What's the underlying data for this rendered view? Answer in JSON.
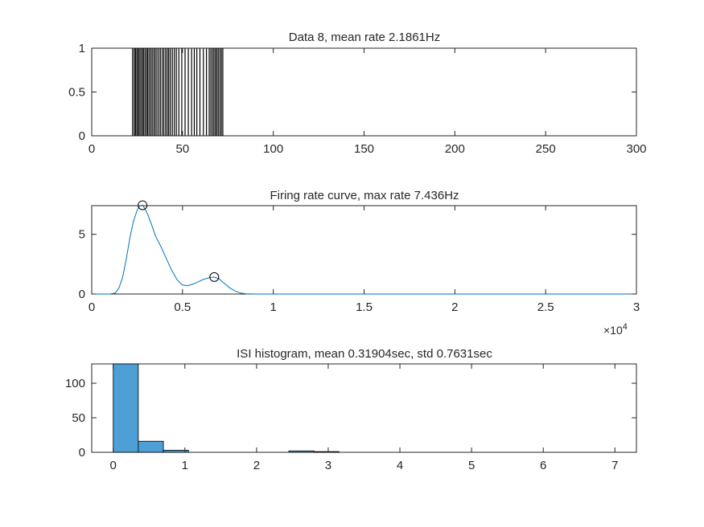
{
  "chart_data": [
    {
      "type": "raster",
      "title": "Data 8, mean rate 2.1861Hz",
      "xlim": [
        0,
        300
      ],
      "ylim": [
        0,
        1
      ],
      "xticks": [
        0,
        50,
        100,
        150,
        200,
        250,
        300
      ],
      "yticks": [
        0,
        0.5,
        1
      ],
      "xtick_labels": [
        "0",
        "50",
        "100",
        "150",
        "200",
        "250",
        "300"
      ],
      "ytick_labels": [
        "0",
        "0.5",
        "1"
      ],
      "spike_times": [
        22.5,
        23.4,
        24.1,
        24.8,
        25.5,
        26.2,
        27.0,
        27.8,
        28.5,
        29.3,
        30.1,
        30.8,
        31.6,
        32.5,
        33.3,
        34.2,
        35.0,
        35.9,
        36.9,
        37.8,
        38.8,
        39.7,
        40.7,
        41.6,
        42.4,
        43.3,
        44.4,
        45.5,
        46.6,
        48.0,
        49.6,
        51.4,
        53.2,
        55.0,
        56.5,
        57.9,
        59.6,
        61.5,
        63.2,
        64.7,
        65.6,
        66.5,
        67.3,
        68.1,
        68.9,
        69.7,
        70.6,
        71.4,
        72.2
      ]
    },
    {
      "type": "line",
      "title": "Firing rate curve, max rate 7.436Hz",
      "xlim": [
        0,
        30000
      ],
      "ylim": [
        0,
        7.4
      ],
      "xticks": [
        0,
        5000,
        10000,
        15000,
        20000,
        25000,
        30000
      ],
      "yticks": [
        0,
        5
      ],
      "xtick_labels": [
        "0",
        "0.5",
        "1",
        "1.5",
        "2",
        "2.5",
        "3"
      ],
      "ytick_labels": [
        "0",
        "5"
      ],
      "exponent_label": "×10",
      "exponent_power": "4",
      "line_color": "#0072BD",
      "x": [
        0,
        1000,
        1300,
        1500,
        1700,
        1900,
        2100,
        2300,
        2500,
        2650,
        2800,
        2950,
        3100,
        3300,
        3500,
        3800,
        4100,
        4400,
        4700,
        5000,
        5300,
        5600,
        5900,
        6200,
        6500,
        6750,
        7000,
        7300,
        7600,
        7900,
        8200,
        8500,
        9000,
        30000
      ],
      "y": [
        0,
        0,
        0.08,
        0.5,
        1.4,
        2.9,
        4.7,
        6.1,
        7.0,
        7.4,
        7.44,
        7.1,
        6.6,
        5.8,
        4.9,
        4.0,
        3.0,
        2.0,
        1.2,
        0.75,
        0.7,
        0.85,
        1.05,
        1.25,
        1.38,
        1.42,
        1.28,
        0.9,
        0.52,
        0.25,
        0.08,
        0.02,
        0,
        0
      ],
      "markers": [
        {
          "x": 2800,
          "y": 7.436
        },
        {
          "x": 6750,
          "y": 1.42
        }
      ]
    },
    {
      "type": "bar",
      "title": "ISI histogram, mean 0.31904sec, std 0.7631sec",
      "xlim": [
        -0.3,
        7.3
      ],
      "ylim": [
        0,
        128
      ],
      "xticks": [
        0,
        1,
        2,
        3,
        4,
        5,
        6,
        7
      ],
      "yticks": [
        0,
        50,
        100
      ],
      "xtick_labels": [
        "0",
        "1",
        "2",
        "3",
        "4",
        "5",
        "6",
        "7"
      ],
      "ytick_labels": [
        "0",
        "50",
        "100"
      ],
      "bar_color": "#4d9fd6",
      "bin_edges": [
        0,
        0.35,
        0.7,
        1.05,
        1.4,
        1.75,
        2.1,
        2.45,
        2.8,
        3.15
      ],
      "counts": [
        128,
        16,
        3,
        0,
        0,
        0,
        0,
        2,
        1
      ]
    }
  ]
}
